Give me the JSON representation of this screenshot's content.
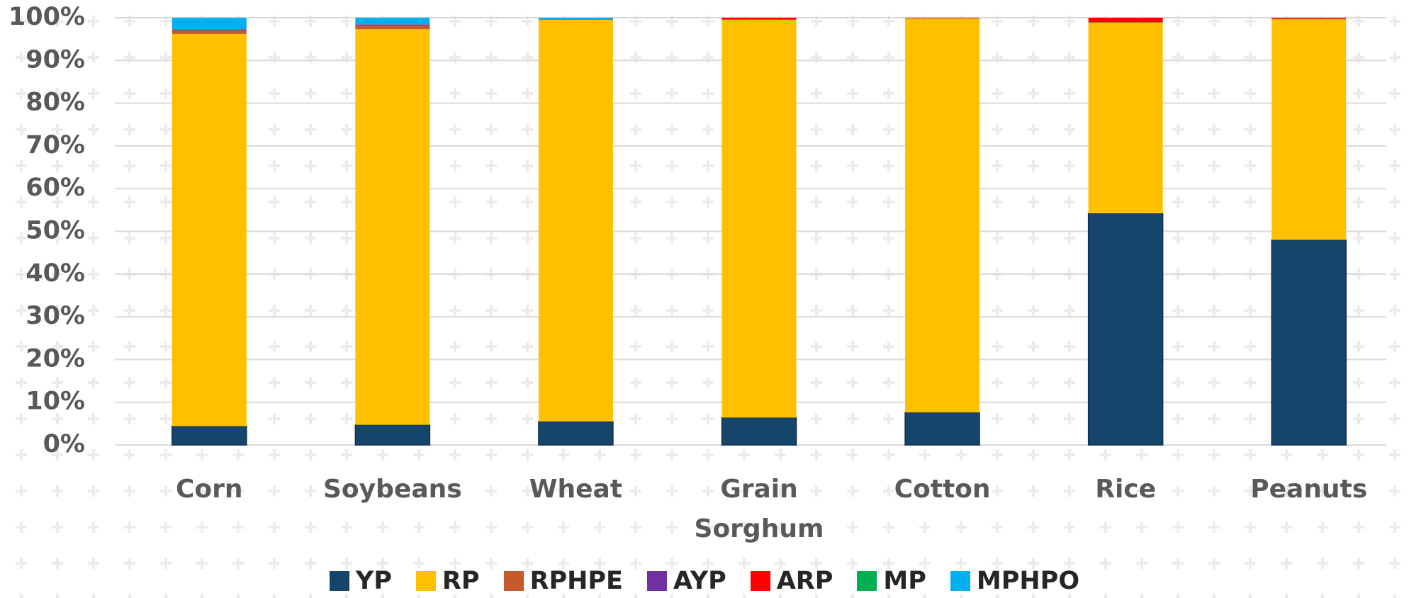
{
  "chart_data": {
    "type": "stacked_bar",
    "categories": [
      "Corn",
      "Soybeans",
      "Wheat",
      "Grain Sorghum",
      "Cotton",
      "Rice",
      "Peanuts"
    ],
    "series": [
      {
        "name": "YP",
        "color": "#16456b",
        "values": [
          4.4,
          4.7,
          5.5,
          6.4,
          7.6,
          54.2,
          48.0
        ]
      },
      {
        "name": "RP",
        "color": "#ffc000",
        "values": [
          91.8,
          92.6,
          94.0,
          93.1,
          92.2,
          44.6,
          51.6
        ]
      },
      {
        "name": "RPHPE",
        "color": "#c55a2a",
        "values": [
          0.8,
          0.8,
          0.1,
          0.1,
          0.1,
          0.2,
          0.2
        ]
      },
      {
        "name": "AYP",
        "color": "#7030a0",
        "values": [
          0.2,
          0.2,
          0,
          0,
          0,
          0,
          0
        ]
      },
      {
        "name": "ARP",
        "color": "#ff0000",
        "values": [
          0.1,
          0.1,
          0,
          0.4,
          0.1,
          1.0,
          0.2
        ]
      },
      {
        "name": "MP",
        "color": "#00b050",
        "values": [
          0,
          0,
          0,
          0,
          0,
          0,
          0
        ]
      },
      {
        "name": "MPHPO",
        "color": "#00b0f0",
        "values": [
          2.7,
          1.6,
          0.4,
          0,
          0,
          0,
          0
        ]
      }
    ],
    "ylim": [
      0,
      100
    ],
    "yticks": [
      {
        "value": 0,
        "label": "0%"
      },
      {
        "value": 10,
        "label": "10%"
      },
      {
        "value": 20,
        "label": "20%"
      },
      {
        "value": 30,
        "label": "30%"
      },
      {
        "value": 40,
        "label": "40%"
      },
      {
        "value": 50,
        "label": "50%"
      },
      {
        "value": 60,
        "label": "60%"
      },
      {
        "value": 70,
        "label": "70%"
      },
      {
        "value": 80,
        "label": "80%"
      },
      {
        "value": 90,
        "label": "90%"
      },
      {
        "value": 100,
        "label": "100%"
      }
    ],
    "grid": true,
    "legend": "bottom"
  }
}
